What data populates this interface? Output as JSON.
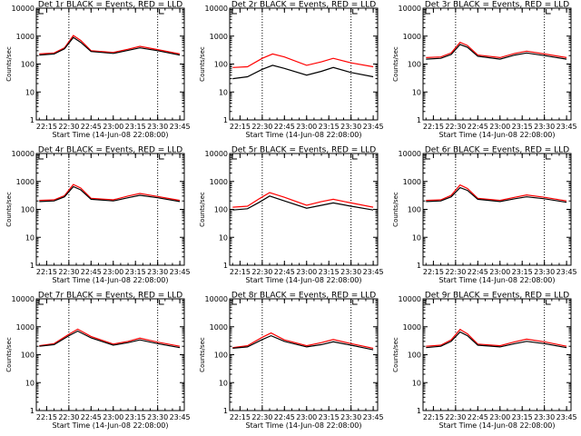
{
  "figure": {
    "xlabel": "Start Time (14-Jun-08 22:08:00)",
    "ylabel": "Counts/sec",
    "x_tick_labels": [
      "22:15",
      "22:30",
      "22:45",
      "23:00",
      "23:15",
      "23:30",
      "23:45"
    ],
    "y_tick_labels": [
      "1",
      "10",
      "100",
      "1000",
      "10000"
    ]
  },
  "chart_data": [
    {
      "type": "line",
      "title": "Det 1r BLACK = Events, RED = LLD",
      "xlabel": "Start Time (14-Jun-08 22:08:00)",
      "ylabel": "Counts/sec",
      "ylog": true,
      "ylim": [
        1,
        10000
      ],
      "x_ticks": [
        "22:15",
        "22:30",
        "22:45",
        "23:00",
        "23:15",
        "23:30",
        "23:45"
      ],
      "markers_x": [
        "22:30",
        "23:30"
      ],
      "x": [
        "22:10",
        "22:20",
        "22:27",
        "22:33",
        "22:38",
        "22:45",
        "23:00",
        "23:10",
        "23:18",
        "23:30",
        "23:45"
      ],
      "series": [
        {
          "name": "Events",
          "color": "#000000",
          "values": [
            210,
            230,
            350,
            900,
            600,
            280,
            240,
            310,
            380,
            300,
            210
          ]
        },
        {
          "name": "LLD",
          "color": "#ff0000",
          "values": [
            230,
            250,
            380,
            1050,
            700,
            300,
            260,
            340,
            430,
            330,
            230
          ]
        }
      ]
    },
    {
      "type": "line",
      "title": "Det 2r BLACK = Events, RED = LLD",
      "xlabel": "Start Time (14-Jun-08 22:08:00)",
      "ylabel": "Counts/sec",
      "ylog": true,
      "ylim": [
        1,
        10000
      ],
      "x_ticks": [
        "22:15",
        "22:30",
        "22:45",
        "23:00",
        "23:15",
        "23:30",
        "23:45"
      ],
      "markers_x": [
        "22:30",
        "23:30"
      ],
      "x": [
        "22:10",
        "22:20",
        "22:30",
        "22:37",
        "22:45",
        "23:00",
        "23:10",
        "23:18",
        "23:30",
        "23:45"
      ],
      "series": [
        {
          "name": "Events",
          "color": "#000000",
          "values": [
            30,
            35,
            65,
            90,
            70,
            40,
            55,
            75,
            50,
            35
          ]
        },
        {
          "name": "LLD",
          "color": "#ff0000",
          "values": [
            75,
            80,
            160,
            230,
            180,
            90,
            120,
            160,
            110,
            80
          ]
        }
      ]
    },
    {
      "type": "line",
      "title": "Det 3r BLACK = Events, RED = LLD",
      "xlabel": "Start Time (14-Jun-08 22:08:00)",
      "ylabel": "Counts/sec",
      "ylog": true,
      "ylim": [
        1,
        10000
      ],
      "x_ticks": [
        "22:15",
        "22:30",
        "22:45",
        "23:00",
        "23:15",
        "23:30",
        "23:45"
      ],
      "markers_x": [
        "22:30",
        "23:30"
      ],
      "x": [
        "22:10",
        "22:20",
        "22:27",
        "22:33",
        "22:38",
        "22:45",
        "23:00",
        "23:10",
        "23:18",
        "23:30",
        "23:45"
      ],
      "series": [
        {
          "name": "Events",
          "color": "#000000",
          "values": [
            150,
            160,
            220,
            500,
            400,
            190,
            150,
            210,
            250,
            200,
            150
          ]
        },
        {
          "name": "LLD",
          "color": "#ff0000",
          "values": [
            170,
            180,
            250,
            600,
            460,
            210,
            170,
            240,
            290,
            230,
            170
          ]
        }
      ]
    },
    {
      "type": "line",
      "title": "Det 4r BLACK = Events, RED = LLD",
      "xlabel": "Start Time (14-Jun-08 22:08:00)",
      "ylabel": "Counts/sec",
      "ylog": true,
      "ylim": [
        1,
        10000
      ],
      "x_ticks": [
        "22:15",
        "22:30",
        "22:45",
        "23:00",
        "23:15",
        "23:30",
        "23:45"
      ],
      "markers_x": [
        "22:30",
        "23:30"
      ],
      "x": [
        "22:10",
        "22:20",
        "22:27",
        "22:33",
        "22:38",
        "22:45",
        "23:00",
        "23:10",
        "23:18",
        "23:30",
        "23:45"
      ],
      "series": [
        {
          "name": "Events",
          "color": "#000000",
          "values": [
            190,
            200,
            280,
            650,
            500,
            230,
            200,
            260,
            320,
            260,
            190
          ]
        },
        {
          "name": "LLD",
          "color": "#ff0000",
          "values": [
            210,
            220,
            310,
            780,
            580,
            250,
            220,
            300,
            370,
            290,
            210
          ]
        }
      ]
    },
    {
      "type": "line",
      "title": "Det 5r BLACK = Events, RED = LLD",
      "xlabel": "Start Time (14-Jun-08 22:08:00)",
      "ylabel": "Counts/sec",
      "ylog": true,
      "ylim": [
        1,
        10000
      ],
      "x_ticks": [
        "22:15",
        "22:30",
        "22:45",
        "23:00",
        "23:15",
        "23:30",
        "23:45"
      ],
      "markers_x": [
        "22:30",
        "23:30"
      ],
      "x": [
        "22:10",
        "22:20",
        "22:28",
        "22:35",
        "22:45",
        "23:00",
        "23:10",
        "23:18",
        "23:30",
        "23:45"
      ],
      "series": [
        {
          "name": "Events",
          "color": "#000000",
          "values": [
            95,
            105,
            180,
            300,
            200,
            110,
            140,
            170,
            130,
            95
          ]
        },
        {
          "name": "LLD",
          "color": "#ff0000",
          "values": [
            120,
            130,
            240,
            400,
            270,
            140,
            190,
            230,
            170,
            120
          ]
        }
      ]
    },
    {
      "type": "line",
      "title": "Det 6r BLACK = Events, RED = LLD",
      "xlabel": "Start Time (14-Jun-08 22:08:00)",
      "ylabel": "Counts/sec",
      "ylog": true,
      "ylim": [
        1,
        10000
      ],
      "x_ticks": [
        "22:15",
        "22:30",
        "22:45",
        "23:00",
        "23:15",
        "23:30",
        "23:45"
      ],
      "markers_x": [
        "22:30",
        "23:30"
      ],
      "x": [
        "22:10",
        "22:20",
        "22:27",
        "22:33",
        "22:38",
        "22:45",
        "23:00",
        "23:10",
        "23:18",
        "23:30",
        "23:45"
      ],
      "series": [
        {
          "name": "Events",
          "color": "#000000",
          "values": [
            190,
            200,
            280,
            600,
            480,
            230,
            190,
            240,
            280,
            240,
            180
          ]
        },
        {
          "name": "LLD",
          "color": "#ff0000",
          "values": [
            210,
            220,
            320,
            750,
            560,
            250,
            210,
            270,
            330,
            270,
            200
          ]
        }
      ]
    },
    {
      "type": "line",
      "title": "Det 7r BLACK = Events, RED = LLD",
      "xlabel": "Start Time (14-Jun-08 22:08:00)",
      "ylabel": "Counts/sec",
      "ylog": true,
      "ylim": [
        1,
        10000
      ],
      "x_ticks": [
        "22:15",
        "22:30",
        "22:45",
        "23:00",
        "23:15",
        "23:30",
        "23:45"
      ],
      "markers_x": [
        "22:30",
        "23:30"
      ],
      "x": [
        "22:10",
        "22:20",
        "22:30",
        "22:36",
        "22:45",
        "23:00",
        "23:10",
        "23:18",
        "23:30",
        "23:45"
      ],
      "series": [
        {
          "name": "Events",
          "color": "#000000",
          "values": [
            200,
            230,
            480,
            700,
            400,
            220,
            270,
            340,
            250,
            180
          ]
        },
        {
          "name": "LLD",
          "color": "#ff0000",
          "values": [
            210,
            250,
            540,
            820,
            450,
            240,
            300,
            390,
            280,
            200
          ]
        }
      ]
    },
    {
      "type": "line",
      "title": "Det 8r BLACK = Events, RED = LLD",
      "xlabel": "Start Time (14-Jun-08 22:08:00)",
      "ylabel": "Counts/sec",
      "ylog": true,
      "ylim": [
        1,
        10000
      ],
      "x_ticks": [
        "22:15",
        "22:30",
        "22:45",
        "23:00",
        "23:15",
        "23:30",
        "23:45"
      ],
      "markers_x": [
        "22:30",
        "23:30"
      ],
      "x": [
        "22:10",
        "22:20",
        "22:30",
        "22:36",
        "22:45",
        "23:00",
        "23:10",
        "23:18",
        "23:30",
        "23:45"
      ],
      "series": [
        {
          "name": "Events",
          "color": "#000000",
          "values": [
            170,
            190,
            350,
            480,
            300,
            190,
            230,
            290,
            220,
            150
          ]
        },
        {
          "name": "LLD",
          "color": "#ff0000",
          "values": [
            180,
            210,
            420,
            600,
            340,
            210,
            270,
            350,
            250,
            170
          ]
        }
      ]
    },
    {
      "type": "line",
      "title": "Det 9r BLACK = Events, RED = LLD",
      "xlabel": "Start Time (14-Jun-08 22:08:00)",
      "ylabel": "Counts/sec",
      "ylog": true,
      "ylim": [
        1,
        10000
      ],
      "x_ticks": [
        "22:15",
        "22:30",
        "22:45",
        "23:00",
        "23:15",
        "23:30",
        "23:45"
      ],
      "markers_x": [
        "22:30",
        "23:30"
      ],
      "x": [
        "22:10",
        "22:20",
        "22:27",
        "22:33",
        "22:38",
        "22:45",
        "23:00",
        "23:10",
        "23:18",
        "23:30",
        "23:45"
      ],
      "series": [
        {
          "name": "Events",
          "color": "#000000",
          "values": [
            180,
            200,
            300,
            650,
            480,
            220,
            190,
            250,
            300,
            250,
            180
          ]
        },
        {
          "name": "LLD",
          "color": "#ff0000",
          "values": [
            200,
            220,
            340,
            800,
            560,
            240,
            210,
            290,
            360,
            290,
            200
          ]
        }
      ]
    }
  ]
}
